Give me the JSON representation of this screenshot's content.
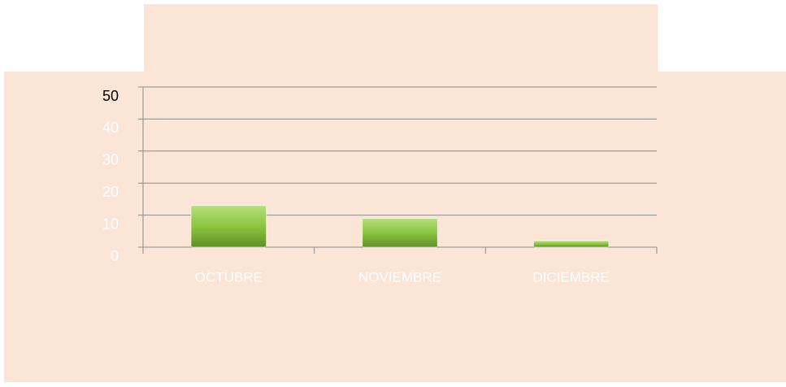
{
  "chart_data": {
    "type": "bar",
    "categories": [
      "OCTUBRE",
      "NOVIEMBRE",
      "DICIEMBRE"
    ],
    "values": [
      13,
      9,
      2
    ],
    "color": "#92d050",
    "ylim": [
      0,
      50
    ],
    "yticks": [
      0,
      10,
      20,
      30,
      40,
      50
    ],
    "grid": true
  }
}
